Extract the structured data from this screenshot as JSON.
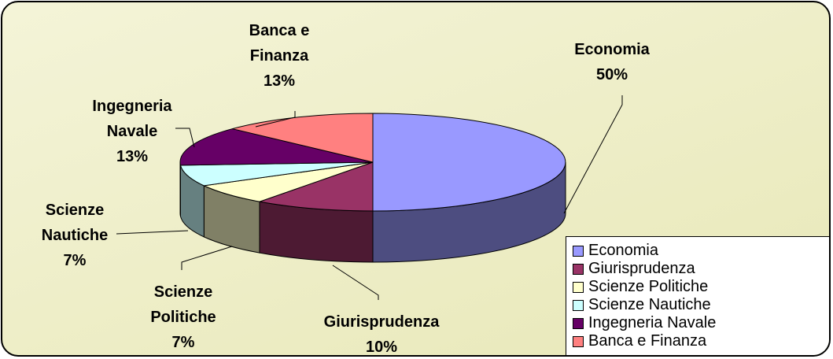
{
  "chart_data": {
    "type": "pie",
    "categories": [
      "Economia",
      "Giurisprudenza",
      "Scienze Politiche",
      "Scienze Nautiche",
      "Ingegneria Navale",
      "Banca e Finanza"
    ],
    "values": [
      50,
      10,
      7,
      7,
      13,
      13
    ],
    "value_labels": [
      "50%",
      "10%",
      "7%",
      "7%",
      "13%",
      "13%"
    ],
    "colors": [
      "#9999ff",
      "#993366",
      "#ffffcc",
      "#ccffff",
      "#660066",
      "#ff8080"
    ],
    "legend": "lower right"
  }
}
